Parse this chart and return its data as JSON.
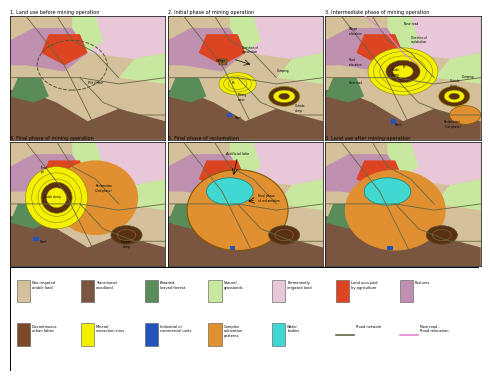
{
  "panel_titles": [
    "1. Land use before mining operation",
    "2. Initial phase of mining operation",
    "3. Intermediate phase of mining operation",
    "4. Final phase of mining operation",
    "5. Final phase of reclamation",
    "6. Land use after mining operation"
  ],
  "colors": {
    "non_irrigated": "#d4c09a",
    "transitional_woodland": "#7a5540",
    "broadleaved_forest": "#5a8c5a",
    "natural_grasslands": "#c8e8a0",
    "permanently_irrigated": "#e8c8d8",
    "land_occupied_agri": "#dd4422",
    "pastures": "#c090b0",
    "discontinuous_urban": "#7a4a28",
    "mineral_extraction": "#f5f000",
    "industrial_commercial": "#2255bb",
    "complex_cultivation": "#e09030",
    "water_bodies": "#40d8d0",
    "road_color": "#666644",
    "new_road_color": "#dd88cc",
    "dark_brown": "#5a3010",
    "mid_brown": "#8a6030"
  }
}
